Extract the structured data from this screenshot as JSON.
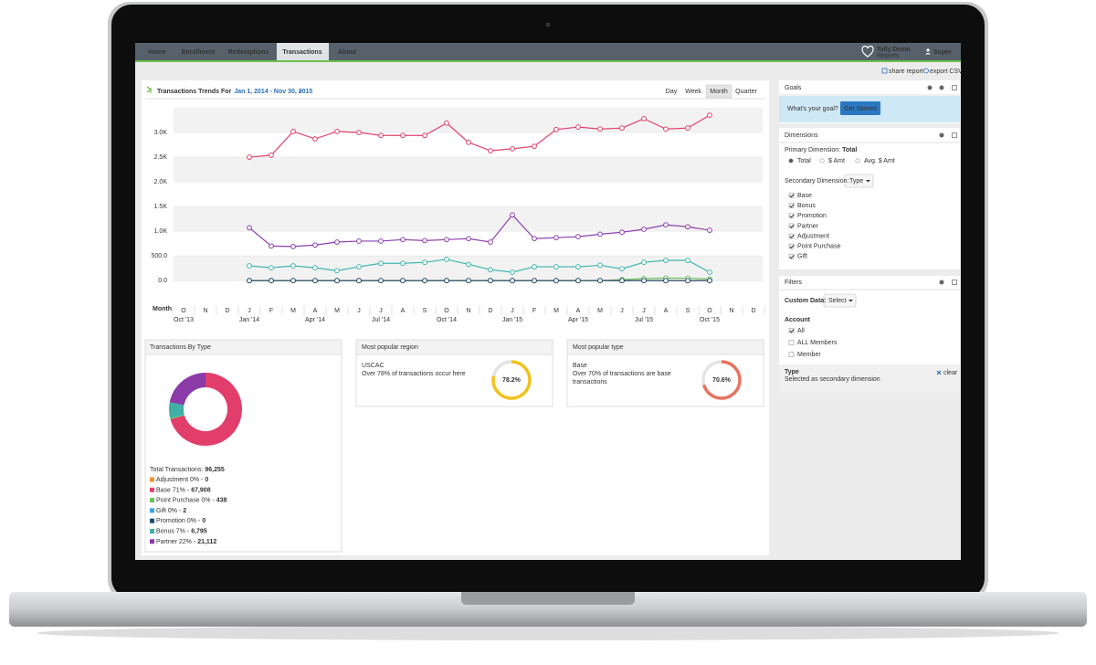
{
  "nav": {
    "tabs": [
      "Home",
      "Enrollment",
      "Redemptions",
      "Transactions",
      "About"
    ],
    "brand": "Tally Demo",
    "brand_sub": "Reports",
    "user": "Super"
  },
  "toolbar": {
    "share": "share report",
    "export": "export CSV"
  },
  "trend": {
    "title": "Transactions Trends For",
    "range": "Jan 1, 2014 - Nov 30, 2015",
    "granularity": [
      "Day",
      "Week",
      "Month",
      "Quarter"
    ]
  },
  "chart_data": [
    {
      "type": "line",
      "x_label": "Month",
      "categories": [
        "O",
        "N",
        "D",
        "J",
        "F",
        "M",
        "A",
        "M",
        "J",
        "J",
        "A",
        "S",
        "O",
        "N",
        "D",
        "J",
        "F",
        "M",
        "A",
        "M",
        "J",
        "J",
        "A",
        "S",
        "O",
        "N",
        "D"
      ],
      "period_labels": [
        "Oct '13",
        null,
        null,
        "Jan '14",
        null,
        null,
        "Apr '14",
        null,
        null,
        "Jul '14",
        null,
        null,
        "Oct '14",
        null,
        null,
        "Jan '15",
        null,
        null,
        "Apr '15",
        null,
        null,
        "Jul '15",
        null,
        null,
        "Oct '15",
        null,
        null
      ],
      "ylim": [
        -200,
        3500
      ],
      "yticks": [
        {
          "value": 0,
          "label": "0.0"
        },
        {
          "value": 500,
          "label": "500.0"
        },
        {
          "value": 1000,
          "label": "1.0K"
        },
        {
          "value": 1500,
          "label": "1.5K"
        },
        {
          "value": 2000,
          "label": "2.0K"
        },
        {
          "value": 2500,
          "label": "2.5K"
        },
        {
          "value": 3000,
          "label": "3.0K"
        }
      ],
      "grid": true,
      "series": [
        {
          "name": "Base",
          "color": "#e0436f",
          "values": [
            null,
            null,
            null,
            2500,
            2540,
            3020,
            2870,
            3020,
            3000,
            2940,
            2940,
            2940,
            3190,
            2800,
            2630,
            2670,
            2720,
            3060,
            3110,
            3070,
            3090,
            3280,
            3070,
            3090,
            3350,
            null,
            null
          ]
        },
        {
          "name": "Bonus",
          "color": "#41b6b0",
          "values": [
            null,
            null,
            null,
            300,
            260,
            300,
            260,
            200,
            280,
            350,
            350,
            370,
            430,
            330,
            220,
            170,
            280,
            280,
            280,
            310,
            240,
            370,
            410,
            410,
            170,
            null,
            null
          ]
        },
        {
          "name": "Promotion",
          "color": "#1f4e79",
          "values": [
            null,
            null,
            null,
            0,
            0,
            0,
            0,
            0,
            0,
            0,
            0,
            0,
            0,
            0,
            0,
            0,
            0,
            0,
            0,
            0,
            0,
            0,
            0,
            0,
            0,
            null,
            null
          ]
        },
        {
          "name": "Partner",
          "color": "#8e3fb0",
          "values": [
            null,
            null,
            null,
            1070,
            700,
            690,
            720,
            780,
            800,
            800,
            830,
            810,
            830,
            850,
            780,
            1330,
            850,
            870,
            890,
            940,
            980,
            1040,
            1130,
            1090,
            1020,
            null,
            null
          ]
        },
        {
          "name": "Adjustment",
          "color": "#f0932b",
          "values": [
            null,
            null,
            null,
            0,
            0,
            0,
            0,
            0,
            0,
            0,
            0,
            0,
            0,
            0,
            0,
            0,
            0,
            0,
            0,
            0,
            0,
            0,
            0,
            0,
            0,
            null,
            null
          ]
        },
        {
          "name": "Point Purchase",
          "color": "#6bbf59",
          "values": [
            null,
            null,
            null,
            0,
            0,
            0,
            0,
            0,
            0,
            0,
            0,
            0,
            0,
            0,
            0,
            0,
            0,
            0,
            0,
            0,
            20,
            40,
            50,
            50,
            30,
            null,
            null
          ]
        },
        {
          "name": "Gift",
          "color": "#3aa3e3",
          "values": [
            null,
            null,
            null,
            0,
            0,
            0,
            0,
            0,
            0,
            0,
            0,
            0,
            0,
            0,
            0,
            0,
            0,
            0,
            0,
            0,
            0,
            0,
            0,
            0,
            0,
            null,
            null
          ]
        }
      ]
    },
    {
      "type": "pie",
      "title": "Transactions By Type",
      "total_label": "Total Transactions:",
      "total": {
        "value": 96255,
        "label": "96,255"
      },
      "categories": [
        "Adjustment 0% -",
        "Base 71% -",
        "Point Purchase 0% -",
        "Gift 0% -",
        "Promotion 0% -",
        "Bonus 7% -",
        "Partner 22% -"
      ],
      "values": [
        0,
        67908,
        438,
        2,
        0,
        6795,
        21112
      ],
      "value_labels": [
        "0",
        "67,908",
        "438",
        "2",
        "0",
        "6,795",
        "21,112"
      ],
      "colors": [
        "#f0932b",
        "#e23e6b",
        "#6bbf59",
        "#3aa3e3",
        "#1f4e79",
        "#3fb0a8",
        "#8b3aa8"
      ]
    },
    {
      "type": "gauge",
      "title": "Most popular region",
      "name": "USCAC",
      "text": "Over 78% of transactions occur here",
      "ylim": [
        0,
        100
      ],
      "value": 78.2,
      "value_label": "78.2%",
      "color": "#f2c21b"
    },
    {
      "type": "gauge",
      "title": "Most popular type",
      "name": "Base",
      "text": "Over 70% of transactions are base transactions",
      "ylim": [
        0,
        100
      ],
      "value": 70.6,
      "value_label": "70.6%",
      "color": "#e8735f"
    }
  ],
  "goals": {
    "title": "Goals",
    "prompt": "What's your goal?",
    "button": "Get Started"
  },
  "dimensions": {
    "title": "Dimensions",
    "primary_label": "Primary Dimension:",
    "primary_value": "Total",
    "options": [
      "Total",
      "$ Amt",
      "Avg. $ Amt"
    ],
    "secondary_label": "Secondary Dimension:",
    "secondary_value": "Type"
  },
  "filters": {
    "title": "Filters",
    "custom_label": "Custom Data:",
    "custom_select": "Select",
    "account_title": "Account",
    "account_options": [
      "All",
      "ALL Members",
      "Member"
    ],
    "type_title": "Type",
    "type_note": "Selected as secondary dimension",
    "clear": "clear"
  }
}
